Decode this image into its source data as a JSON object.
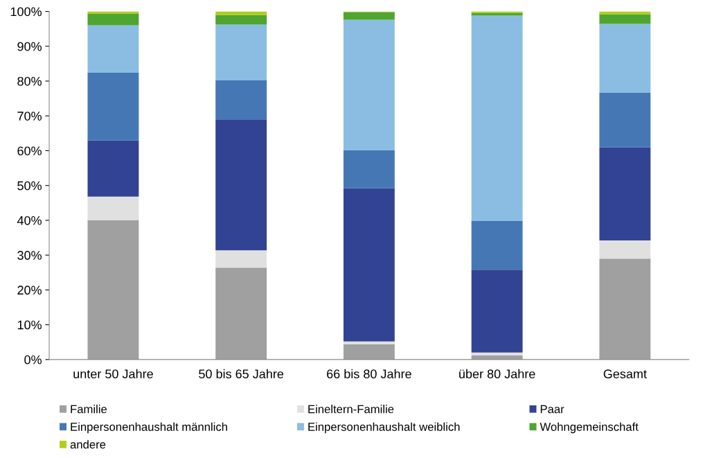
{
  "chart_data": {
    "type": "bar",
    "stacked": true,
    "legend": "bottom",
    "grid": false,
    "categories": [
      "unter 50 Jahre",
      "50 bis 65 Jahre",
      "66 bis 80 Jahre",
      "über 80 Jahre",
      "Gesamt"
    ],
    "ylim": [
      0,
      100
    ],
    "yticks": [
      {
        "value": 0,
        "label": "0%"
      },
      {
        "value": 10,
        "label": "10%"
      },
      {
        "value": 20,
        "label": "20%"
      },
      {
        "value": 30,
        "label": "30%"
      },
      {
        "value": 40,
        "label": "40%"
      },
      {
        "value": 50,
        "label": "50%"
      },
      {
        "value": 60,
        "label": "60%"
      },
      {
        "value": 70,
        "label": "70%"
      },
      {
        "value": 80,
        "label": "80%"
      },
      {
        "value": 90,
        "label": "90%"
      },
      {
        "value": 100,
        "label": "100%"
      }
    ],
    "series": [
      {
        "name": "Familie",
        "color": "#a0a0a0",
        "values": [
          40,
          26.4,
          4.4,
          1.2,
          29
        ]
      },
      {
        "name": "Eineltern-Familie",
        "color": "#e0e0e0",
        "values": [
          6.8,
          5,
          0.8,
          0.8,
          5.2
        ]
      },
      {
        "name": "Paar",
        "color": "#334393",
        "values": [
          16.2,
          37.6,
          44,
          23.8,
          26.8
        ]
      },
      {
        "name": "Einpersonenhaushalt männlich",
        "color": "#4577b5",
        "values": [
          19.4,
          11.2,
          11,
          14,
          15.6
        ]
      },
      {
        "name": "Einpersonenhaushalt weiblich",
        "color": "#8bbde3",
        "values": [
          13.6,
          16,
          37.4,
          59,
          19.8
        ]
      },
      {
        "name": "Wohngemeinschaft",
        "color": "#4ea52f",
        "values": [
          3.4,
          2.8,
          2.2,
          0.8,
          2.8
        ]
      },
      {
        "name": "andere",
        "color": "#b5cc18",
        "values": [
          0.6,
          1,
          0.2,
          0.4,
          0.8
        ]
      }
    ]
  }
}
